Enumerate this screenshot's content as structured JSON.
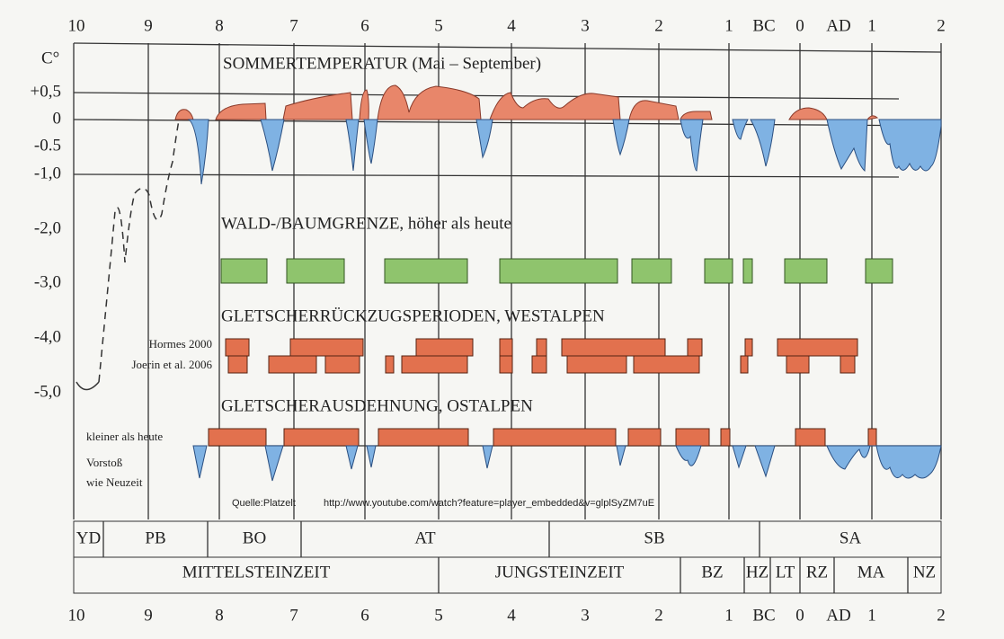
{
  "top_axis": [
    "10",
    "9",
    "8",
    "7",
    "6",
    "5",
    "4",
    "3",
    "2",
    "1",
    "BC",
    "0",
    "AD",
    "1",
    "2"
  ],
  "bottom_axis": [
    "10",
    "9",
    "8",
    "7",
    "6",
    "5",
    "4",
    "3",
    "2",
    "1",
    "BC",
    "0",
    "AD",
    "1",
    "2"
  ],
  "y_axis": [
    "C°",
    "+0,5",
    "0",
    "-0.5",
    "-1,0",
    "-2,0",
    "-3,0",
    "-4,0",
    "-5,0"
  ],
  "sections": [
    "SOMMERTEMPERATUR (Mai – September)",
    "WALD-/BAUMGRENZE, höher als heute",
    "GLETSCHERRÜCKZUGSPERIODEN, WESTALPEN",
    "GLETSCHERAUSDEHNUNG, OSTALPEN"
  ],
  "labels": {
    "hormes": "Hormes 2000",
    "joerin": "Joerin et al. 2006",
    "smaller": "kleiner als heute",
    "advance": "Vorstoß",
    "modern": "wie Neuzeit"
  },
  "source": {
    "label": "Quelle:Platzelt",
    "url": "http://www.youtube.com/watch?feature=player_embedded&v=glplSyZM7uE"
  },
  "periods": [
    "YD",
    "PB",
    "BO",
    "AT",
    "SB",
    "SA"
  ],
  "epochs": [
    "MITTELSTEINZEIT",
    "JUNGSTEINZEIT",
    "BZ",
    "HZ",
    "LT",
    "RZ",
    "MA",
    "NZ"
  ]
}
